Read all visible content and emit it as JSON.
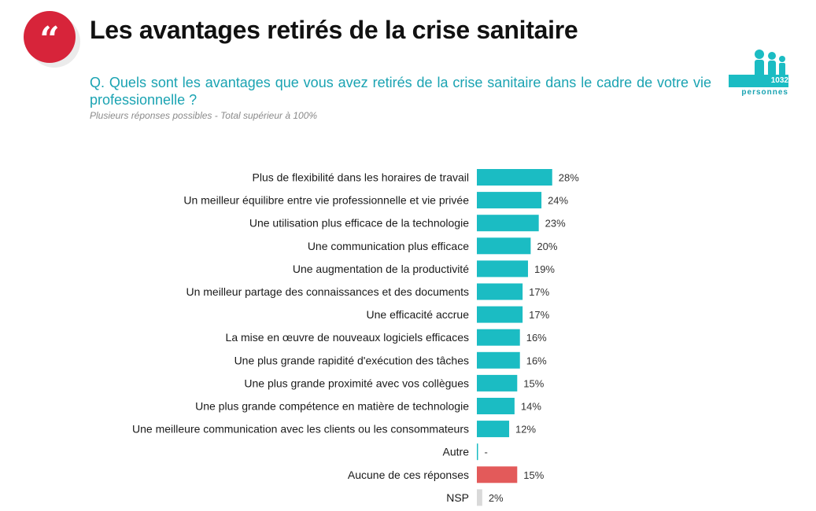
{
  "header": {
    "logo_glyph": "“",
    "title": "Les avantages retirés de la crise sanitaire",
    "question": "Q. Quels sont les avantages que vous avez retirés de la crise sanitaire dans le cadre de votre vie professionnelle ?",
    "note": "Plusieurs réponses possibles - Total supérieur à 100%"
  },
  "sample": {
    "count": "1032",
    "unit": "personnes",
    "icon": "people-icon"
  },
  "colors": {
    "accent": "#d7243a",
    "teal": "#1bbcc3",
    "red": "#e35a5a",
    "grey": "#d9d9d9",
    "question": "#1aa3b2"
  },
  "chart_data": {
    "type": "bar",
    "orientation": "horizontal",
    "categories": [
      "Plus de flexibilité dans les horaires de travail",
      "Un meilleur équilibre entre vie professionnelle et vie privée",
      "Une utilisation plus efficace de la technologie",
      "Une communication plus efficace",
      "Une augmentation de la productivité",
      "Un meilleur partage des connaissances et des documents",
      "Une efficacité accrue",
      "La mise en œuvre de nouveaux logiciels efficaces",
      "Une plus grande rapidité d'exécution des tâches",
      "Une plus grande proximité avec vos collègues",
      "Une plus grande compétence en matière de technologie",
      "Une meilleure communication avec les clients ou les consommateurs",
      "Autre",
      "Aucune de ces réponses",
      "NSP"
    ],
    "values": [
      28,
      24,
      23,
      20,
      19,
      17,
      17,
      16,
      16,
      15,
      14,
      12,
      0,
      15,
      2
    ],
    "labels": [
      "28%",
      "24%",
      "23%",
      "20%",
      "19%",
      "17%",
      "17%",
      "16%",
      "16%",
      "15%",
      "14%",
      "12%",
      "-",
      "15%",
      "2%"
    ],
    "bar_colors": [
      "#1bbcc3",
      "#1bbcc3",
      "#1bbcc3",
      "#1bbcc3",
      "#1bbcc3",
      "#1bbcc3",
      "#1bbcc3",
      "#1bbcc3",
      "#1bbcc3",
      "#1bbcc3",
      "#1bbcc3",
      "#1bbcc3",
      "#1bbcc3",
      "#e35a5a",
      "#d9d9d9"
    ],
    "unit": "%"
  }
}
